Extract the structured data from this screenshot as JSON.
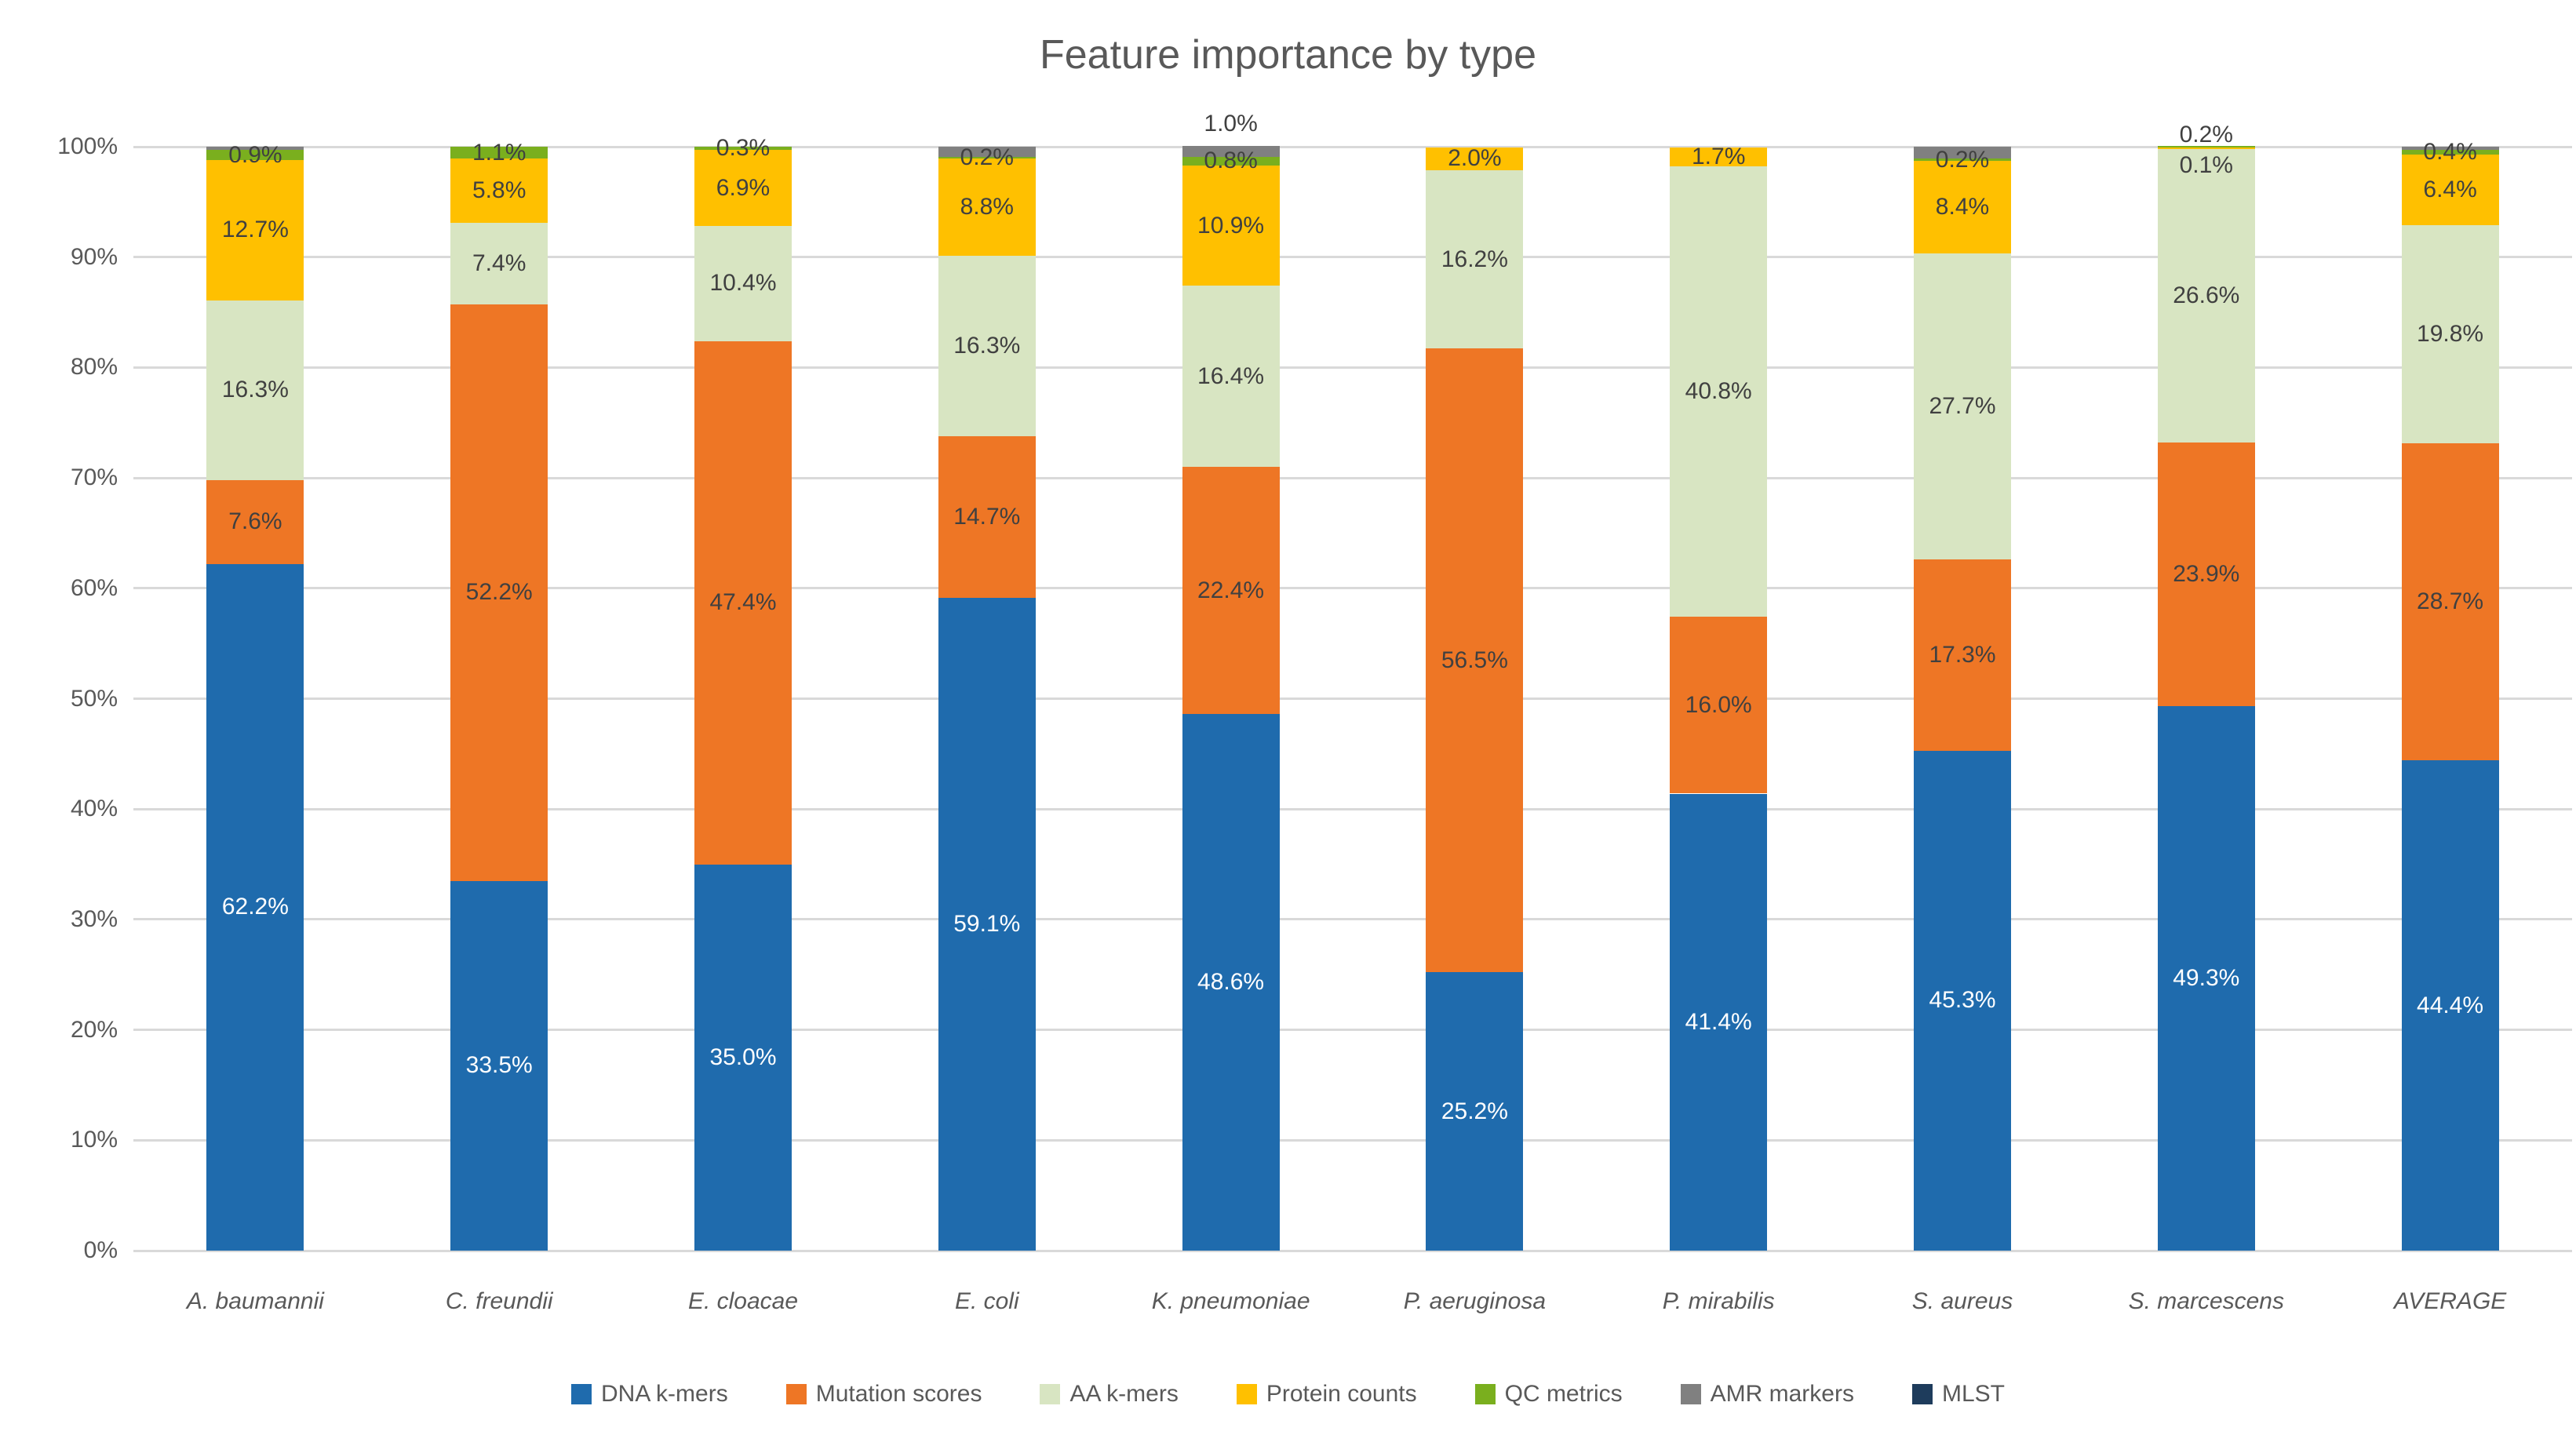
{
  "title": "Feature importance by type",
  "chart_data": {
    "type": "bar",
    "stacked": true,
    "title": "Feature importance by type",
    "y_axis": {
      "min": 0,
      "max": 100,
      "tick_step": 10,
      "tick_labels": [
        "0%",
        "10%",
        "20%",
        "30%",
        "40%",
        "50%",
        "60%",
        "70%",
        "80%",
        "90%",
        "100%"
      ],
      "gridlines": true,
      "gridline_color": "#D9D9D9"
    },
    "categories": [
      "A. baumannii",
      "C. freundii",
      "E. cloacae",
      "E. coli",
      "K. pneumoniae",
      "P. aeruginosa",
      "P. mirabilis",
      "S. aureus",
      "S. marcescens",
      "AVERAGE"
    ],
    "legend_position": "bottom",
    "series": [
      {
        "name": "DNA k-mers",
        "color": "#1F6BAD",
        "label_color": "#FFFFFF",
        "values": [
          62.2,
          33.5,
          35.0,
          59.1,
          48.6,
          25.2,
          41.4,
          45.3,
          49.3,
          44.4
        ],
        "labels": [
          "62.2%",
          "33.5%",
          "35.0%",
          "59.1%",
          "48.6%",
          "25.2%",
          "41.4%",
          "45.3%",
          "49.3%",
          "44.4%"
        ]
      },
      {
        "name": "Mutation scores",
        "color": "#EE7625",
        "label_color": "#404040",
        "values": [
          7.6,
          52.2,
          47.4,
          14.7,
          22.4,
          56.5,
          16.0,
          17.3,
          23.9,
          28.7
        ],
        "labels": [
          "7.6%",
          "52.2%",
          "47.4%",
          "14.7%",
          "22.4%",
          "56.5%",
          "16.0%",
          "17.3%",
          "23.9%",
          "28.7%"
        ]
      },
      {
        "name": "AA k-mers",
        "color": "#D8E5C2",
        "label_color": "#404040",
        "values": [
          16.3,
          7.4,
          10.4,
          16.3,
          16.4,
          16.2,
          40.8,
          27.7,
          26.6,
          19.8
        ],
        "labels": [
          "16.3%",
          "7.4%",
          "10.4%",
          "16.3%",
          "16.4%",
          "16.2%",
          "40.8%",
          "27.7%",
          "26.6%",
          "19.8%"
        ]
      },
      {
        "name": "Protein counts",
        "color": "#FFC000",
        "label_color": "#404040",
        "values": [
          12.7,
          5.8,
          6.9,
          8.8,
          10.9,
          2.0,
          1.7,
          8.4,
          0.1,
          6.4
        ],
        "labels": [
          "12.7%",
          "5.8%",
          "6.9%",
          "8.8%",
          "10.9%",
          "2.0%",
          "1.7%",
          "8.4%",
          {
            "text": "0.1%",
            "dy": 22
          },
          "6.4%"
        ]
      },
      {
        "name": "QC metrics",
        "color": "#7AAF1E",
        "label_color": "#404040",
        "values": [
          0.9,
          1.1,
          0.3,
          0.2,
          0.8,
          0,
          0,
          0.2,
          0.2,
          0.4
        ],
        "labels": [
          "0.9%",
          "1.1%",
          "0.3%",
          "0.2%",
          "0.8%",
          null,
          null,
          "0.2%",
          {
            "text": "0.2%",
            "position": "above",
            "dy": 14
          },
          "0.4%"
        ]
      },
      {
        "name": "AMR markers",
        "color": "#808080",
        "label_color": "#404040",
        "values": [
          0.3,
          0,
          0,
          0.9,
          1.0,
          0,
          0,
          1.1,
          0,
          0.3
        ],
        "labels": [
          null,
          null,
          null,
          null,
          {
            "text": "1.0%",
            "position": "above"
          },
          null,
          null,
          null,
          null,
          null
        ]
      },
      {
        "name": "MLST",
        "color": "#1E3C5C",
        "label_color": "#FFFFFF",
        "values": [
          0,
          0,
          0,
          0,
          0,
          0,
          0,
          0,
          0,
          0
        ],
        "labels": [
          null,
          null,
          null,
          null,
          null,
          null,
          null,
          null,
          null,
          null
        ]
      }
    ]
  }
}
